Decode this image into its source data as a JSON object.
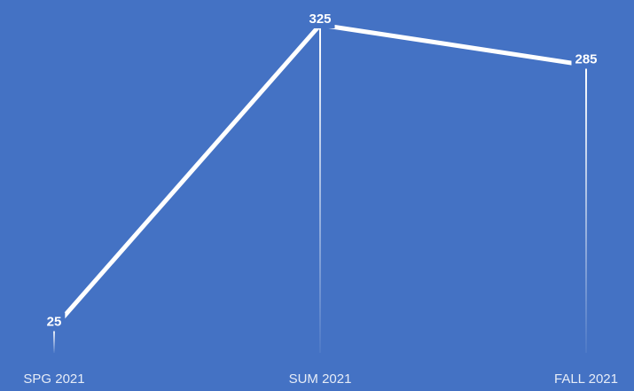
{
  "chart_data": {
    "type": "line",
    "categories": [
      "SPG 2021",
      "SUM 2021",
      "FALL 2021"
    ],
    "series": [
      {
        "color": "#ffffff",
        "values": [
          25,
          325,
          285
        ]
      }
    ],
    "ylim": [
      0,
      325
    ]
  }
}
